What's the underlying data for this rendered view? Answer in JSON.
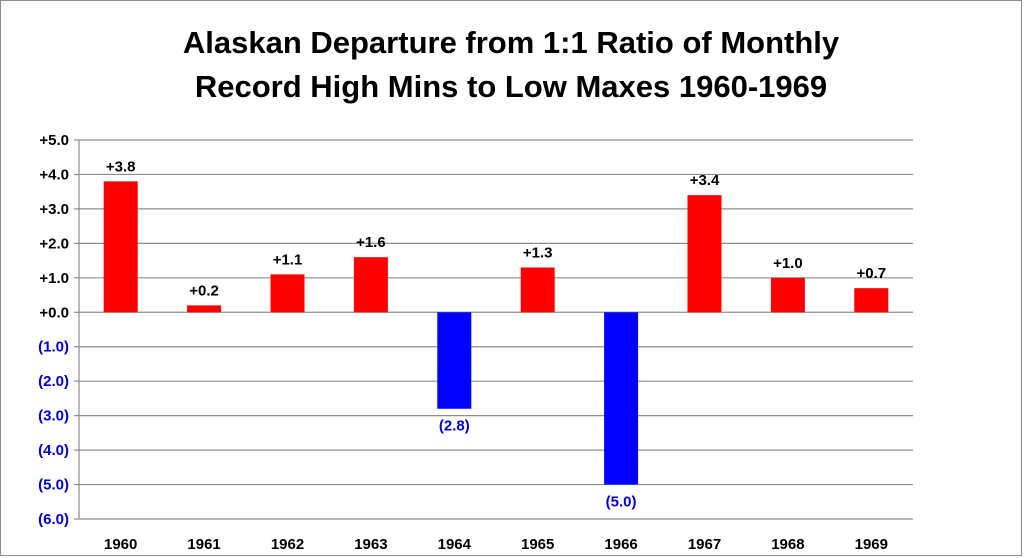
{
  "chart_data": {
    "type": "bar",
    "title": "Alaskan Departure from 1:1 Ratio of Monthly\nRecord High Mins to Low Maxes 1960-1969",
    "xlabel": "",
    "ylabel": "",
    "categories": [
      "1960",
      "1961",
      "1962",
      "1963",
      "1964",
      "1965",
      "1966",
      "1967",
      "1968",
      "1969"
    ],
    "values": [
      3.8,
      0.2,
      1.1,
      1.6,
      -2.8,
      1.3,
      -5.0,
      3.4,
      1.0,
      0.7
    ],
    "data_labels": [
      "+3.8",
      "+0.2",
      "+1.1",
      "+1.6",
      "(2.8)",
      "+1.3",
      "(5.0)",
      "+3.4",
      "+1.0",
      "+0.7"
    ],
    "ylim": [
      -6,
      5
    ],
    "y_ticks": [
      5,
      4,
      3,
      2,
      1,
      0,
      -1,
      -2,
      -3,
      -4,
      -5,
      -6
    ],
    "y_tick_labels": [
      "+5.0",
      "+4.0",
      "+3.0",
      "+2.0",
      "+1.0",
      "+0.0",
      "(1.0)",
      "(2.0)",
      "(3.0)",
      "(4.0)",
      "(5.0)",
      "(6.0)"
    ],
    "grid": true,
    "legend": "none",
    "colors": {
      "positive": "#ff0000",
      "negative": "#0000ff",
      "positive_text": "#000000",
      "negative_text": "#0000cc",
      "gridline": "#8c8c8c",
      "axis": "#8c8c8c"
    }
  }
}
